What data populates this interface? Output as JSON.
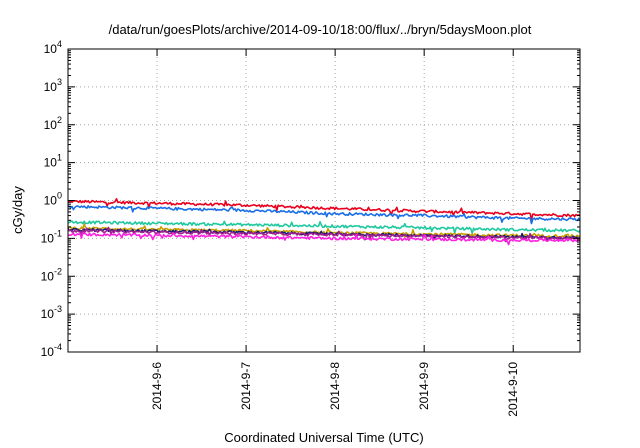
{
  "chart_data": {
    "type": "line",
    "title": "/data/run/goesPlots/archive/2014-09-10/18:00/flux/../bryn/5daysMoon.plot",
    "xlabel": "Coordinated Universal Time (UTC)",
    "ylabel": "cGy/day",
    "yscale": "log",
    "ylim": [
      0.0001,
      10000
    ],
    "xlim": [
      "2014-09-05 00:00",
      "2014-09-10 18:00"
    ],
    "grid": true,
    "legend": "none",
    "yticks": [
      {
        "base": "10",
        "exp": "-4"
      },
      {
        "base": "10",
        "exp": "-3"
      },
      {
        "base": "10",
        "exp": "-2"
      },
      {
        "base": "10",
        "exp": "-1"
      },
      {
        "base": "10",
        "exp": "0"
      },
      {
        "base": "10",
        "exp": "1"
      },
      {
        "base": "10",
        "exp": "2"
      },
      {
        "base": "10",
        "exp": "3"
      },
      {
        "base": "10",
        "exp": "4"
      }
    ],
    "xticks": [
      "2014-9-6",
      "2014-9-7",
      "2014-9-8",
      "2014-9-9",
      "2014-9-10"
    ],
    "x": [
      "2014-09-05 00:00",
      "2014-09-06 00:00",
      "2014-09-07 00:00",
      "2014-09-08 00:00",
      "2014-09-09 00:00",
      "2014-09-10 00:00",
      "2014-09-10 18:00"
    ],
    "series": [
      {
        "color": "#e8001c",
        "values": [
          0.95,
          0.85,
          0.75,
          0.62,
          0.52,
          0.45,
          0.4
        ]
      },
      {
        "color": "#1a6fe8",
        "values": [
          0.7,
          0.62,
          0.55,
          0.45,
          0.4,
          0.34,
          0.32
        ]
      },
      {
        "color": "#20c8a0",
        "values": [
          0.27,
          0.25,
          0.23,
          0.21,
          0.19,
          0.17,
          0.16
        ]
      },
      {
        "color": "#c8a000",
        "values": [
          0.19,
          0.17,
          0.16,
          0.14,
          0.13,
          0.12,
          0.115
        ]
      },
      {
        "color": "#1a1a70",
        "values": [
          0.17,
          0.155,
          0.145,
          0.13,
          0.12,
          0.11,
          0.105
        ]
      },
      {
        "color": "#a02090",
        "values": [
          0.16,
          0.145,
          0.135,
          0.125,
          0.115,
          0.105,
          0.1
        ]
      },
      {
        "color": "#ff20e0",
        "values": [
          0.13,
          0.12,
          0.11,
          0.1,
          0.095,
          0.09,
          0.09
        ]
      }
    ]
  }
}
